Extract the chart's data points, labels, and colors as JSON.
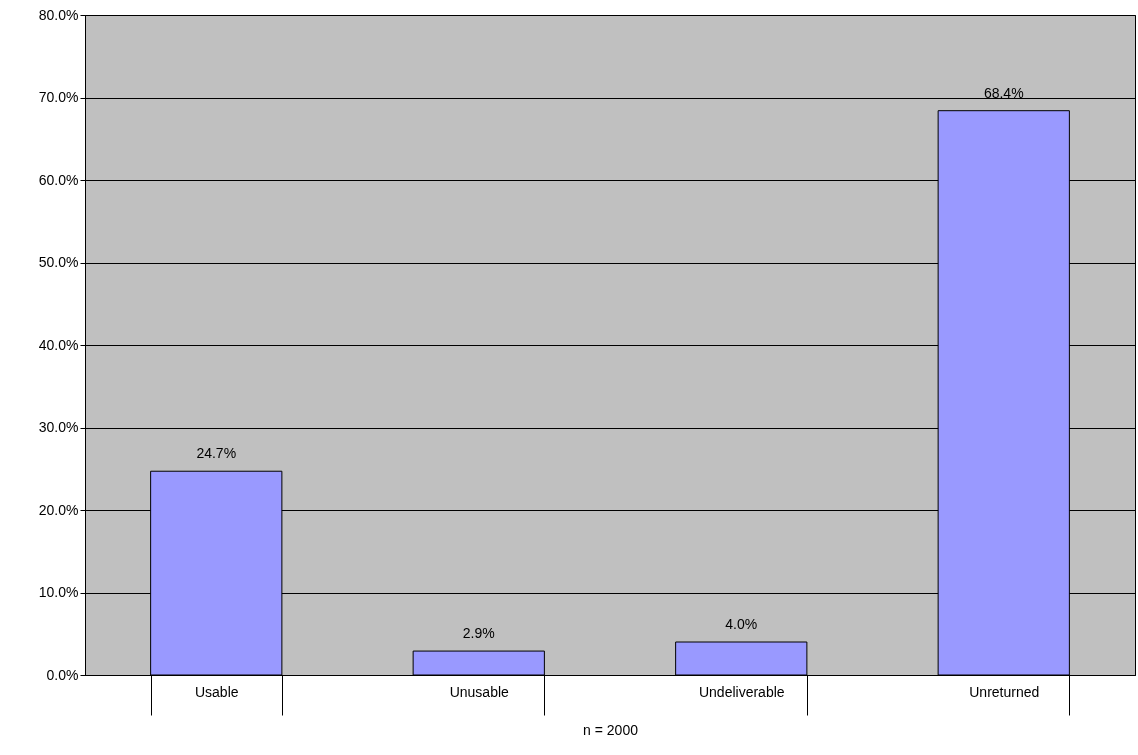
{
  "chart_data": {
    "type": "bar",
    "xlabel": "n = 2000",
    "categories": [
      "Usable",
      "Unusable",
      "Undeliverable",
      "Unreturned"
    ],
    "values": [
      24.7,
      2.9,
      4.0,
      68.4
    ],
    "value_labels": [
      "24.7%",
      "2.9%",
      "4.0%",
      "68.4%"
    ],
    "color": "#9999ff",
    "ylim": [
      0,
      80
    ],
    "yticks": [
      {
        "value": 0,
        "label": "0.0%"
      },
      {
        "value": 10,
        "label": "10.0%"
      },
      {
        "value": 20,
        "label": "20.0%"
      },
      {
        "value": 30,
        "label": "30.0%"
      },
      {
        "value": 40,
        "label": "40.0%"
      },
      {
        "value": 50,
        "label": "50.0%"
      },
      {
        "value": 60,
        "label": "60.0%"
      },
      {
        "value": 70,
        "label": "70.0%"
      },
      {
        "value": 80,
        "label": "80.0%"
      }
    ],
    "grid": "y"
  }
}
